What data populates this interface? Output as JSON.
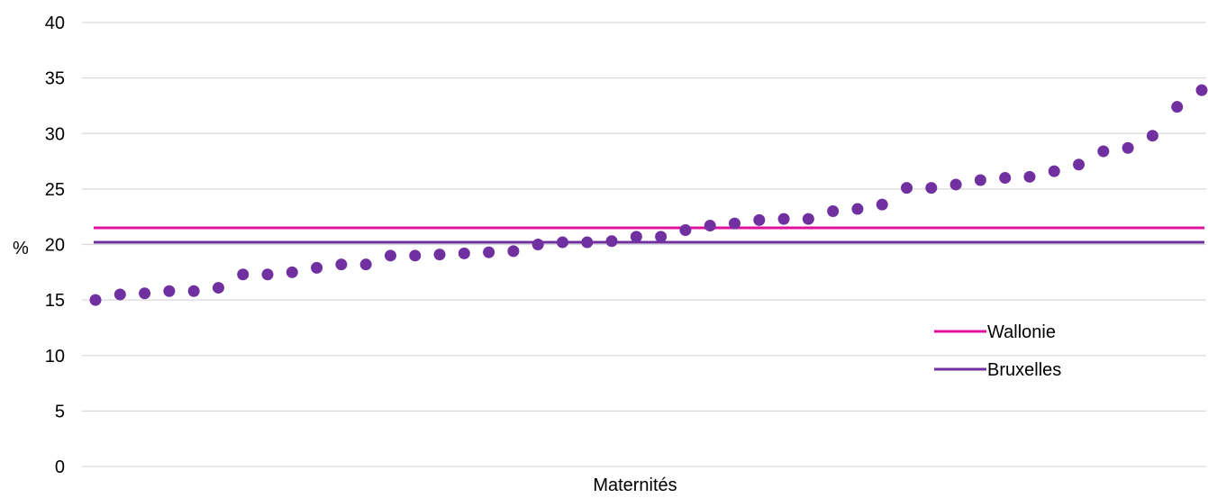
{
  "chart_data": {
    "type": "scatter",
    "title": "",
    "xlabel": "Maternités",
    "ylabel": "%",
    "ylim": [
      0,
      40
    ],
    "yticks": [
      "0",
      "5",
      "10",
      "15",
      "20",
      "25",
      "30",
      "35",
      "40"
    ],
    "grid": true,
    "legend_position": "right",
    "points": {
      "color": "#7030a0",
      "y": [
        15.0,
        15.5,
        15.6,
        15.8,
        15.8,
        16.1,
        17.3,
        17.3,
        17.5,
        17.9,
        18.2,
        18.2,
        19.0,
        19.0,
        19.1,
        19.2,
        19.3,
        19.4,
        20.0,
        20.2,
        20.2,
        20.3,
        20.7,
        20.7,
        21.3,
        21.7,
        21.9,
        22.2,
        22.3,
        22.3,
        23.0,
        23.2,
        23.6,
        25.1,
        25.1,
        25.4,
        25.8,
        26.0,
        26.1,
        26.6,
        27.2,
        28.4,
        28.7,
        29.8,
        32.4,
        33.9
      ]
    },
    "reference_lines": [
      {
        "name": "Wallonie",
        "value": 21.5,
        "color": "#e0119e"
      },
      {
        "name": "Bruxelles",
        "value": 20.2,
        "color": "#7030a0"
      }
    ]
  }
}
